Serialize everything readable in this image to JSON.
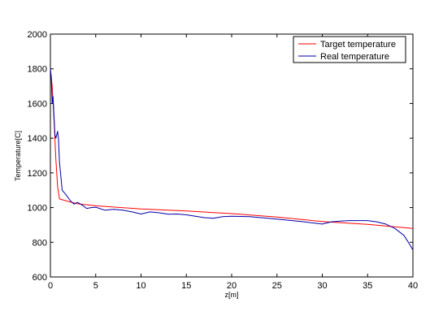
{
  "chart_data": {
    "type": "line",
    "title": "",
    "xlabel": "z[m]",
    "ylabel": "Temperature[C]",
    "xlim": [
      0,
      40
    ],
    "ylim": [
      600,
      2000
    ],
    "xticks": [
      "0",
      "5",
      "10",
      "15",
      "20",
      "25",
      "30",
      "35",
      "40"
    ],
    "yticks": [
      "600",
      "800",
      "1000",
      "1200",
      "1400",
      "1600",
      "1800",
      "2000"
    ],
    "grid": false,
    "legend_position": "top-right",
    "series": [
      {
        "name": "Target temperature",
        "color": "#ff0000",
        "points": [
          [
            0,
            1800
          ],
          [
            0.2,
            1700
          ],
          [
            0.4,
            1500
          ],
          [
            0.6,
            1280
          ],
          [
            0.8,
            1120
          ],
          [
            1.0,
            1050
          ],
          [
            2,
            1035
          ],
          [
            3,
            1022
          ],
          [
            5,
            1010
          ],
          [
            10,
            992
          ],
          [
            15,
            980
          ],
          [
            20,
            965
          ],
          [
            25,
            945
          ],
          [
            30,
            920
          ],
          [
            35,
            903
          ],
          [
            40,
            880
          ]
        ]
      },
      {
        "name": "Real temperature",
        "color": "#0000aa",
        "points": [
          [
            0,
            1800
          ],
          [
            0.1,
            1750
          ],
          [
            0.2,
            1600
          ],
          [
            0.3,
            1640
          ],
          [
            0.4,
            1520
          ],
          [
            0.5,
            1420
          ],
          [
            0.6,
            1400
          ],
          [
            0.7,
            1420
          ],
          [
            0.8,
            1440
          ],
          [
            0.9,
            1390
          ],
          [
            1.0,
            1260
          ],
          [
            1.3,
            1100
          ],
          [
            1.7,
            1075
          ],
          [
            2.2,
            1040
          ],
          [
            2.6,
            1020
          ],
          [
            3.0,
            1030
          ],
          [
            3.5,
            1015
          ],
          [
            4.0,
            995
          ],
          [
            4.5,
            1000
          ],
          [
            5.0,
            1002
          ],
          [
            6.0,
            985
          ],
          [
            7.0,
            990
          ],
          [
            8.0,
            985
          ],
          [
            9.0,
            975
          ],
          [
            10.0,
            963
          ],
          [
            11.0,
            975
          ],
          [
            12.0,
            970
          ],
          [
            13.0,
            962
          ],
          [
            14.0,
            963
          ],
          [
            15.0,
            958
          ],
          [
            16.0,
            950
          ],
          [
            17.0,
            942
          ],
          [
            18.0,
            938
          ],
          [
            19.0,
            948
          ],
          [
            20.0,
            950
          ],
          [
            22.0,
            948
          ],
          [
            24.0,
            938
          ],
          [
            26.0,
            928
          ],
          [
            28.0,
            918
          ],
          [
            30.0,
            905
          ],
          [
            31.0,
            918
          ],
          [
            32.0,
            922
          ],
          [
            33.0,
            925
          ],
          [
            35.0,
            925
          ],
          [
            36.0,
            918
          ],
          [
            37.0,
            905
          ],
          [
            38.0,
            880
          ],
          [
            39.0,
            840
          ],
          [
            39.5,
            800
          ],
          [
            40.0,
            755
          ]
        ]
      }
    ]
  }
}
